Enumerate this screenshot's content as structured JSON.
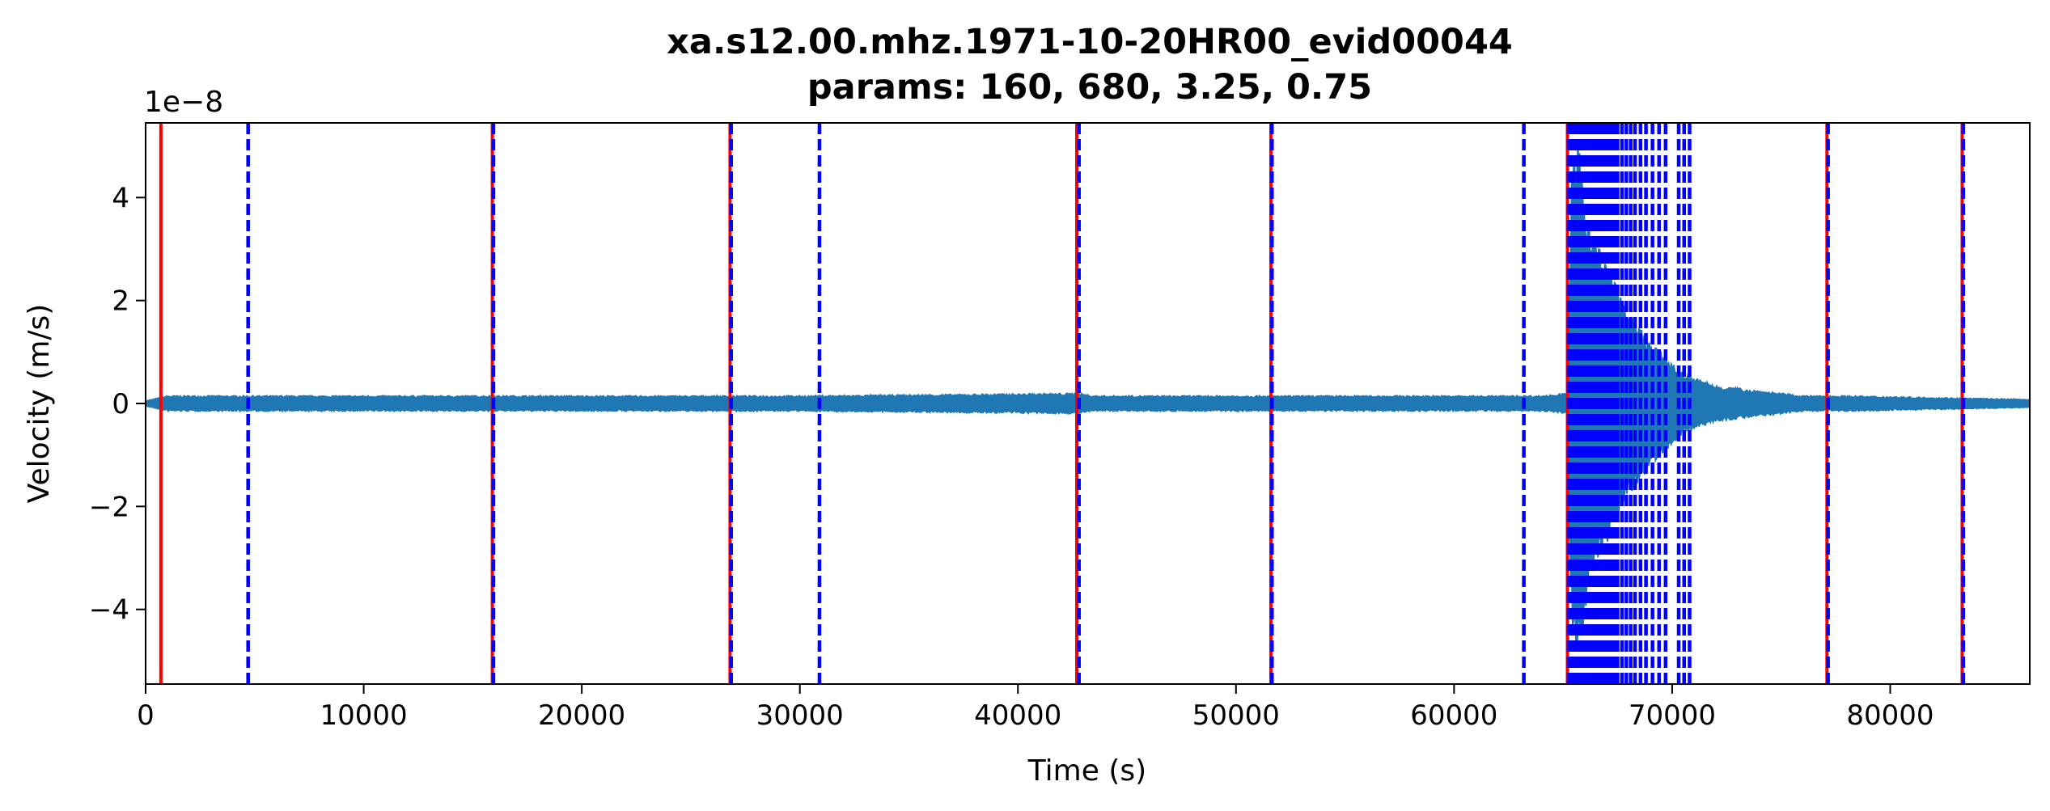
{
  "chart_data": {
    "type": "line",
    "title": "xa.s12.00.mhz.1971-10-20HR00_evid00044",
    "subtitle": "params: 160, 680, 3.25, 0.75",
    "xlabel": "Time (s)",
    "ylabel": "Velocity (m/s)",
    "y_offset_label": "1e−8",
    "xlim": [
      0,
      86400
    ],
    "ylim": [
      -5.45,
      5.45
    ],
    "y_unit_scale": 1e-08,
    "x_ticks": [
      0,
      10000,
      20000,
      30000,
      40000,
      50000,
      60000,
      70000,
      80000
    ],
    "x_tick_labels": [
      "0",
      "10000",
      "20000",
      "30000",
      "40000",
      "50000",
      "60000",
      "70000",
      "80000"
    ],
    "y_ticks": [
      -4,
      -2,
      0,
      2,
      4
    ],
    "y_tick_labels": [
      "−4",
      "−2",
      "0",
      "2",
      "4"
    ],
    "grid": false,
    "legend": "none",
    "colors": {
      "trace": "#1f77b4",
      "trigger_on": "#ff0000",
      "trigger_off": "#0000ff"
    },
    "series": [
      {
        "style": "solid",
        "color": "#1f77b4",
        "envelope": {
          "x": [
            0,
            1000,
            10000,
            30000,
            42800,
            43500,
            50000,
            60000,
            64000,
            65200,
            65400,
            65700,
            66000,
            66300,
            66700,
            67200,
            67600,
            68000,
            68500,
            69000,
            69500,
            70000,
            70500,
            71000,
            72000,
            73000,
            74000,
            75000,
            76000,
            78000,
            86400
          ],
          "amplitude": [
            0.05,
            0.15,
            0.15,
            0.15,
            0.2,
            0.15,
            0.15,
            0.15,
            0.15,
            0.2,
            4.5,
            5.1,
            4.0,
            3.6,
            3.0,
            2.6,
            2.1,
            1.8,
            1.5,
            1.2,
            1.0,
            0.8,
            0.6,
            0.5,
            0.35,
            0.3,
            0.25,
            0.2,
            0.15,
            0.15,
            0.08
          ]
        }
      }
    ],
    "trigger_on_lines": [
      700,
      15900,
      26800,
      42700,
      51600,
      65200,
      77100,
      83300
    ],
    "trigger_off_lines": [
      4700,
      15950,
      26850,
      30900,
      42800,
      51650,
      63200,
      65250,
      65400,
      65550,
      65700,
      65850,
      66000,
      66150,
      66300,
      66450,
      66600,
      66750,
      66900,
      67050,
      67200,
      67350,
      67500,
      67700,
      67900,
      68100,
      68300,
      68550,
      68800,
      69100,
      69400,
      69700,
      70300,
      70550,
      70800,
      77150,
      83350
    ]
  }
}
